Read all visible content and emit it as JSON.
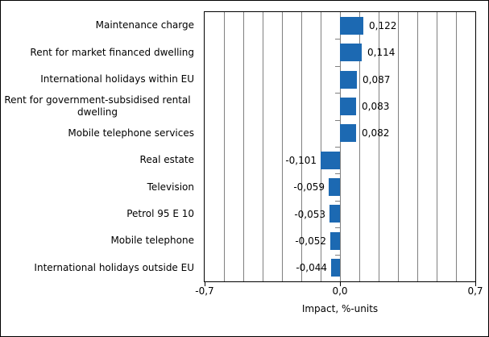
{
  "chart_data": {
    "type": "bar",
    "orientation": "horizontal",
    "title": "",
    "xlabel": "Impact, %-units",
    "ylabel": "",
    "categories": [
      "Maintenance charge",
      "Rent for market financed dwelling",
      "International holidays within EU",
      "Rent for government-subsidised rental dwelling",
      "Mobile telephone services",
      "Real estate",
      "Television",
      "Petrol 95 E 10",
      "Mobile telephone",
      "International holidays outside EU"
    ],
    "values": [
      0.122,
      0.114,
      0.087,
      0.083,
      0.082,
      -0.101,
      -0.059,
      -0.053,
      -0.052,
      -0.044
    ],
    "value_labels": [
      "0,122",
      "0,114",
      "0,087",
      "0,083",
      "0,082",
      "-0,101",
      "-0,059",
      "-0,053",
      "-0,052",
      "-0,044"
    ],
    "xlim": [
      -0.7,
      0.7
    ],
    "grid": true,
    "grid_step": 0.1,
    "legend": false,
    "x_ticks": [
      {
        "value": -0.7,
        "label": "-0,7"
      },
      {
        "value": 0.0,
        "label": "0,0"
      },
      {
        "value": 0.7,
        "label": "0,7"
      }
    ]
  },
  "colors": {
    "bar": "#1c69b2",
    "gridline": "#808080",
    "axis": "#000000",
    "background": "#ffffff",
    "text": "#000000"
  }
}
